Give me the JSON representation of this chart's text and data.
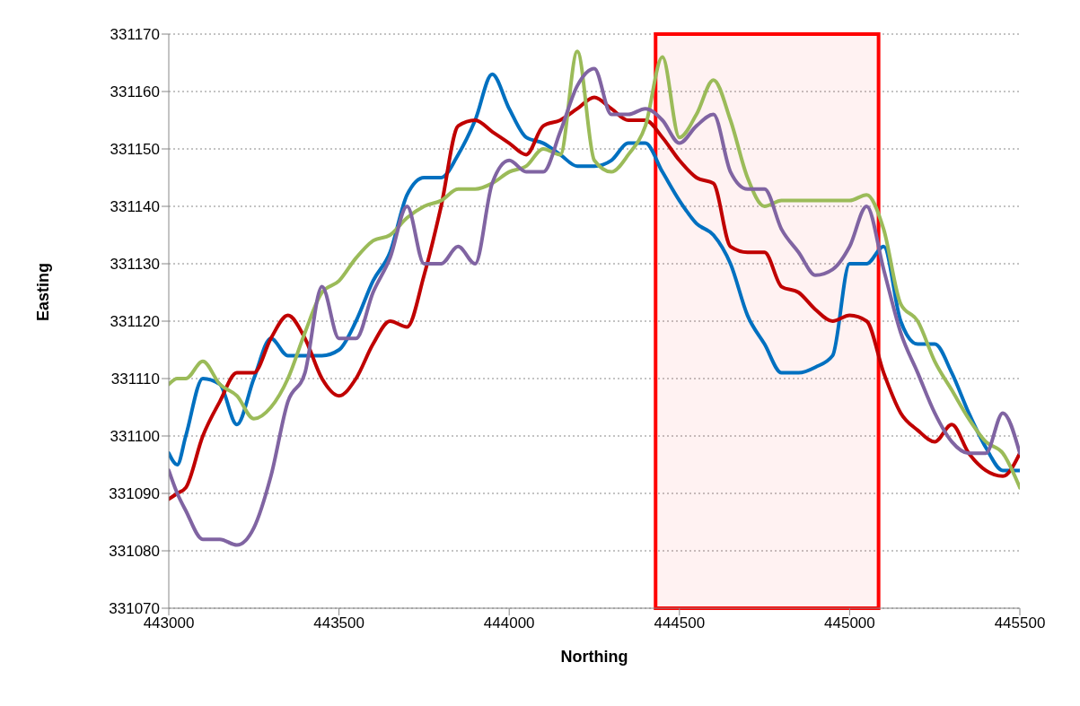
{
  "chart_data": {
    "type": "line",
    "xlabel": "Northing",
    "ylabel": "Easting",
    "x": [
      443000,
      443025,
      443050,
      443100,
      443150,
      443200,
      443250,
      443300,
      443350,
      443400,
      443450,
      443500,
      443550,
      443600,
      443650,
      443700,
      443750,
      443800,
      443850,
      443900,
      443950,
      444000,
      444050,
      444100,
      444150,
      444200,
      444250,
      444300,
      444350,
      444400,
      444450,
      444500,
      444550,
      444600,
      444650,
      444700,
      444750,
      444800,
      444850,
      444900,
      444950,
      445000,
      445050,
      445100,
      445150,
      445200,
      445250,
      445300,
      445350,
      445400,
      445450,
      445500
    ],
    "series": [
      {
        "color": "#0070c0",
        "values": [
          331097,
          331095,
          331100,
          331110,
          331109,
          331102,
          331110,
          331117,
          331114,
          331114,
          331114,
          331115,
          331120,
          331127,
          331132,
          331142,
          331145,
          331145,
          331149,
          331155,
          331163,
          331157,
          331152,
          331151,
          331149,
          331147,
          331147,
          331148,
          331151,
          331151,
          331146,
          331141,
          331137,
          331135,
          331130,
          331121,
          331116,
          331111,
          331111,
          331112,
          331114,
          331130,
          331130,
          331133,
          331120,
          331116,
          331116,
          331111,
          331104,
          331098,
          331094,
          331094
        ]
      },
      {
        "color": "#c00000",
        "values": [
          331089,
          331090,
          331091,
          331100,
          331106,
          331111,
          331111,
          331117,
          331121,
          331117,
          331110,
          331107,
          331110,
          331116,
          331120,
          331119,
          331128,
          331140,
          331154,
          331155,
          331153,
          331151,
          331149,
          331154,
          331155,
          331157,
          331159,
          331157,
          331155,
          331155,
          331152,
          331148,
          331145,
          331144,
          331133,
          331132,
          331132,
          331126,
          331125,
          331122,
          331120,
          331121,
          331120,
          331111,
          331104,
          331101,
          331099,
          331102,
          331097,
          331094,
          331093,
          331097
        ]
      },
      {
        "color": "#9bbb59",
        "values": [
          331109,
          331110,
          331110,
          331113,
          331109,
          331107,
          331103,
          331105,
          331110,
          331118,
          331125,
          331127,
          331131,
          331134,
          331135,
          331138,
          331140,
          331141,
          331143,
          331143,
          331144,
          331146,
          331147,
          331150,
          331149,
          331167,
          331148,
          331146,
          331149,
          331154,
          331166,
          331152,
          331156,
          331162,
          331155,
          331145,
          331140,
          331141,
          331141,
          331141,
          331141,
          331141,
          331142,
          331136,
          331123,
          331120,
          331113,
          331108,
          331103,
          331099,
          331097,
          331091
        ]
      },
      {
        "color": "#8064a2",
        "values": [
          331094,
          331090,
          331087,
          331082,
          331082,
          331081,
          331084,
          331093,
          331106,
          331111,
          331126,
          331117,
          331117,
          331125,
          331131,
          331140,
          331130,
          331130,
          331133,
          331130,
          331144,
          331148,
          331146,
          331146,
          331153,
          331161,
          331164,
          331156,
          331156,
          331157,
          331155,
          331151,
          331154,
          331156,
          331146,
          331143,
          331143,
          331136,
          331132,
          331128,
          331129,
          331133,
          331140,
          331129,
          331118,
          331111,
          331104,
          331099,
          331097,
          331097,
          331104,
          331097
        ]
      }
    ],
    "xlim": [
      443000,
      445500
    ],
    "xticks": [
      443000,
      443500,
      444000,
      444500,
      445000,
      445500
    ],
    "ylim": [
      331070,
      331170
    ],
    "yticks": [
      331070,
      331080,
      331090,
      331100,
      331110,
      331120,
      331130,
      331140,
      331150,
      331160,
      331170
    ],
    "grid": "y",
    "marker": "none",
    "line_style": "solid",
    "bands": [
      {
        "axis": "x",
        "from": 444430,
        "to": 445085,
        "color": "#ff0000"
      }
    ]
  }
}
